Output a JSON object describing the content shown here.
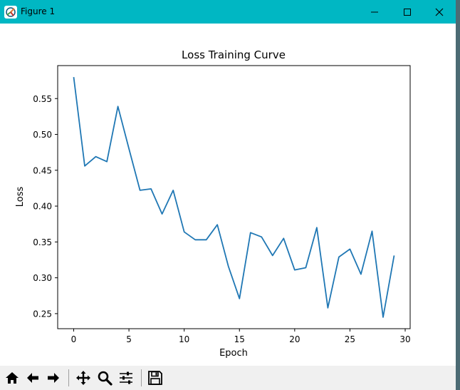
{
  "window": {
    "title": "Figure 1",
    "icons": {
      "app": "figure-app-icon",
      "minimize": "minimize-icon",
      "maximize": "maximize-icon",
      "close": "close-icon"
    }
  },
  "toolbar": {
    "buttons": [
      {
        "name": "home-button",
        "icon": "home-icon"
      },
      {
        "name": "back-button",
        "icon": "arrow-left-icon"
      },
      {
        "name": "forward-button",
        "icon": "arrow-right-icon"
      },
      {
        "name": "pan-button",
        "icon": "move-icon"
      },
      {
        "name": "zoom-button",
        "icon": "zoom-icon"
      },
      {
        "name": "configure-subplots-button",
        "icon": "sliders-icon"
      },
      {
        "name": "save-button",
        "icon": "save-icon"
      }
    ]
  },
  "chart_data": {
    "type": "line",
    "title": "Loss Training Curve",
    "xlabel": "Epoch",
    "ylabel": "Loss",
    "xlim": [
      -1.45,
      30.45
    ],
    "ylim": [
      0.229,
      0.596
    ],
    "xticks": [
      0,
      5,
      10,
      15,
      20,
      25,
      30
    ],
    "xtick_labels": [
      "0",
      "5",
      "10",
      "15",
      "20",
      "25",
      "30"
    ],
    "yticks": [
      0.25,
      0.3,
      0.35,
      0.4,
      0.45,
      0.5,
      0.55
    ],
    "ytick_labels": [
      "0.25",
      "0.30",
      "0.35",
      "0.40",
      "0.45",
      "0.50",
      "0.55"
    ],
    "grid": false,
    "series": [
      {
        "color": "#1f77b4",
        "x": [
          0,
          1,
          2,
          3,
          4,
          5,
          6,
          7,
          8,
          9,
          10,
          11,
          12,
          13,
          14,
          15,
          16,
          17,
          18,
          19,
          20,
          21,
          22,
          23,
          24,
          25,
          26,
          27,
          28,
          29
        ],
        "y": [
          0.58,
          0.456,
          0.469,
          0.462,
          0.539,
          0.48,
          0.422,
          0.424,
          0.389,
          0.422,
          0.364,
          0.353,
          0.353,
          0.374,
          0.316,
          0.271,
          0.363,
          0.357,
          0.331,
          0.355,
          0.311,
          0.314,
          0.37,
          0.258,
          0.329,
          0.34,
          0.305,
          0.365,
          0.245,
          0.331
        ]
      }
    ]
  }
}
